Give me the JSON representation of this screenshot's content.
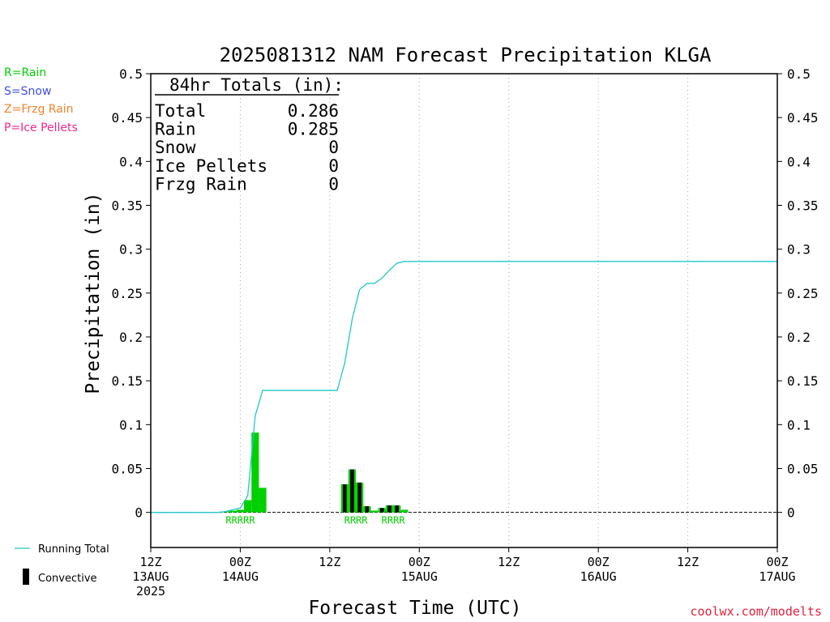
{
  "chart_data": {
    "type": "bar",
    "title": "2025081312 NAM Forecast Precipitation KLGA",
    "xlabel": "Forecast Time (UTC)",
    "ylabel": "Precipitation (in)",
    "ylim": [
      -0.04,
      0.5
    ],
    "y_ticks": [
      0,
      0.05,
      0.1,
      0.15,
      0.2,
      0.25,
      0.3,
      0.35,
      0.4,
      0.45,
      0.5
    ],
    "y_tick_labels": [
      "0",
      "0.05",
      "0.1",
      "0.15",
      "0.2",
      "0.25",
      "0.3",
      "0.35",
      "0.4",
      "0.45",
      "0.5"
    ],
    "x_unit": "forecast hour",
    "xlim": [
      0,
      84
    ],
    "x_ticks": [
      {
        "hour": 0,
        "lines": [
          "12Z",
          "13AUG",
          "2025"
        ]
      },
      {
        "hour": 12,
        "lines": [
          "00Z",
          "14AUG"
        ]
      },
      {
        "hour": 24,
        "lines": [
          "12Z"
        ]
      },
      {
        "hour": 36,
        "lines": [
          "00Z",
          "15AUG"
        ]
      },
      {
        "hour": 48,
        "lines": [
          "12Z"
        ]
      },
      {
        "hour": 60,
        "lines": [
          "00Z",
          "16AUG"
        ]
      },
      {
        "hour": 72,
        "lines": [
          "12Z"
        ]
      },
      {
        "hour": 84,
        "lines": [
          "00Z",
          "17AUG"
        ]
      }
    ],
    "grid": "vertical dotted at each x tick",
    "series": [
      {
        "name": "Running Total",
        "kind": "line",
        "color": "#20c8c8",
        "points": [
          [
            0,
            0
          ],
          [
            1,
            0
          ],
          [
            2,
            0
          ],
          [
            3,
            0
          ],
          [
            4,
            0
          ],
          [
            5,
            0
          ],
          [
            6,
            0
          ],
          [
            7,
            0
          ],
          [
            8,
            0
          ],
          [
            9,
            0
          ],
          [
            10,
            0.001
          ],
          [
            11,
            0.003
          ],
          [
            12,
            0.005
          ],
          [
            13,
            0.019
          ],
          [
            14,
            0.11
          ],
          [
            15,
            0.139
          ],
          [
            16,
            0.139
          ],
          [
            17,
            0.139
          ],
          [
            18,
            0.139
          ],
          [
            19,
            0.139
          ],
          [
            20,
            0.139
          ],
          [
            21,
            0.139
          ],
          [
            22,
            0.139
          ],
          [
            23,
            0.139
          ],
          [
            24,
            0.139
          ],
          [
            25,
            0.139
          ],
          [
            26,
            0.17
          ],
          [
            27,
            0.22
          ],
          [
            28,
            0.254
          ],
          [
            29,
            0.261
          ],
          [
            30,
            0.261
          ],
          [
            31,
            0.267
          ],
          [
            32,
            0.276
          ],
          [
            33,
            0.284
          ],
          [
            34,
            0.286
          ],
          [
            35,
            0.286
          ],
          [
            36,
            0.286
          ],
          [
            84,
            0.286
          ]
        ]
      },
      {
        "kind": "bars",
        "color": "#00d000",
        "bars": [
          {
            "hour": 10,
            "value": 0.001
          },
          {
            "hour": 11,
            "value": 0.002
          },
          {
            "hour": 12,
            "value": 0.003
          },
          {
            "hour": 13,
            "value": 0.014
          },
          {
            "hour": 14,
            "value": 0.091
          },
          {
            "hour": 15,
            "value": 0.028
          },
          {
            "hour": 26,
            "value": 0.032
          },
          {
            "hour": 27,
            "value": 0.049
          },
          {
            "hour": 28,
            "value": 0.034
          },
          {
            "hour": 29,
            "value": 0.007
          },
          {
            "hour": 30,
            "value": 0.002
          },
          {
            "hour": 31,
            "value": 0.005
          },
          {
            "hour": 32,
            "value": 0.008
          },
          {
            "hour": 33,
            "value": 0.008
          },
          {
            "hour": 34,
            "value": 0.003
          }
        ]
      },
      {
        "name": "Convective",
        "kind": "bars",
        "color": "#000000",
        "bars": [
          {
            "hour": 26,
            "value": 0.032
          },
          {
            "hour": 27,
            "value": 0.049
          },
          {
            "hour": 28,
            "value": 0.034
          },
          {
            "hour": 29,
            "value": 0.007
          },
          {
            "hour": 31,
            "value": 0.005
          },
          {
            "hour": 32,
            "value": 0.008
          },
          {
            "hour": 33,
            "value": 0.008
          }
        ]
      }
    ],
    "type_markers": [
      {
        "hour": 12,
        "text": "RRRRR",
        "color": "#00d000"
      },
      {
        "hour": 27.5,
        "text": "RRRR",
        "color": "#00d000"
      },
      {
        "hour": 32.5,
        "text": "RRRR",
        "color": "#00d000"
      }
    ],
    "totals_box": {
      "title": "84hr Totals (in):",
      "rows": [
        {
          "label": "Total",
          "value": "0.286"
        },
        {
          "label": "Rain",
          "value": "0.285"
        },
        {
          "label": "Snow",
          "value": "0"
        },
        {
          "label": "Ice Pellets",
          "value": "0"
        },
        {
          "label": "Frzg Rain",
          "value": "0"
        }
      ]
    }
  },
  "type_legend": [
    {
      "text": "R=Rain",
      "color": "#00d000"
    },
    {
      "text": "S=Snow",
      "color": "#3c50e6"
    },
    {
      "text": "Z=Frzg Rain",
      "color": "#f08228"
    },
    {
      "text": "P=Ice Pellets",
      "color": "#f0288c"
    }
  ],
  "series_legend": {
    "running_total": "Running Total",
    "convective": "Convective"
  },
  "watermark": "coolwx.com/modelts"
}
